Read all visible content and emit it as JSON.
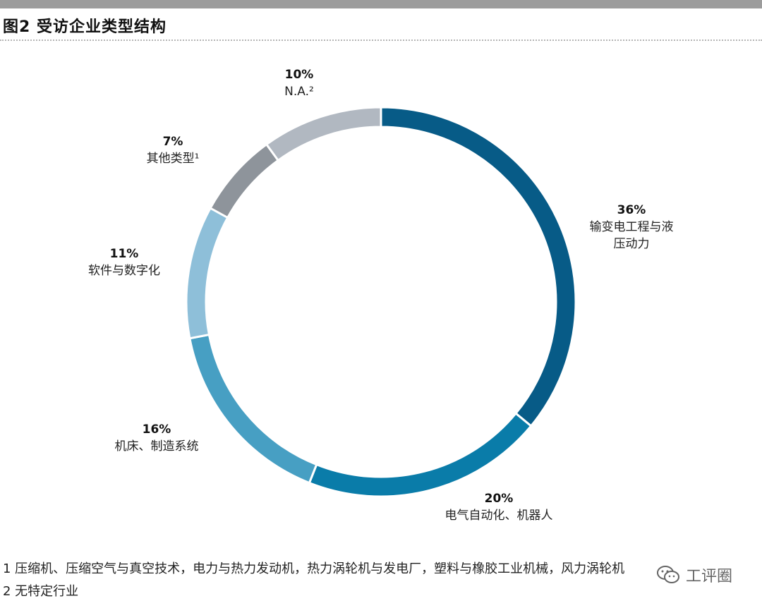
{
  "figure": {
    "title": "图2 受访企业类型结构"
  },
  "chart_data": {
    "type": "pie",
    "donut": true,
    "legend": "none",
    "slices": [
      {
        "label": "输变电工程与液压动力",
        "label_lines": [
          "输变电工程与液",
          "压动力"
        ],
        "percent_text": "36%",
        "value": 36,
        "color": "#075b87"
      },
      {
        "label": "电气自动化、机器人",
        "label_lines": [
          "电气自动化、机器人"
        ],
        "percent_text": "20%",
        "value": 20,
        "color": "#0a7ca9"
      },
      {
        "label": "机床、制造系统",
        "label_lines": [
          "机床、制造系统"
        ],
        "percent_text": "16%",
        "value": 16,
        "color": "#479fc3"
      },
      {
        "label": "软件与数字化",
        "label_lines": [
          "软件与数字化"
        ],
        "percent_text": "11%",
        "value": 11,
        "color": "#8ebfd9"
      },
      {
        "label": "其他类型¹",
        "label_lines": [
          "其他类型¹"
        ],
        "percent_text": "7%",
        "value": 7,
        "color": "#8e949b"
      },
      {
        "label": "N.A.²",
        "label_lines": [
          "N.A.²"
        ],
        "percent_text": "10%",
        "value": 10,
        "color": "#b1b8c1"
      }
    ]
  },
  "footnotes": [
    "1 压缩机、压缩空气与真空技术，电力与热力发动机，热力涡轮机与发电厂，塑料与橡胶工业机械，风力涡轮机",
    "2 无特定行业"
  ],
  "watermark": {
    "text": "工评圈",
    "icon": "wechat-icon"
  }
}
